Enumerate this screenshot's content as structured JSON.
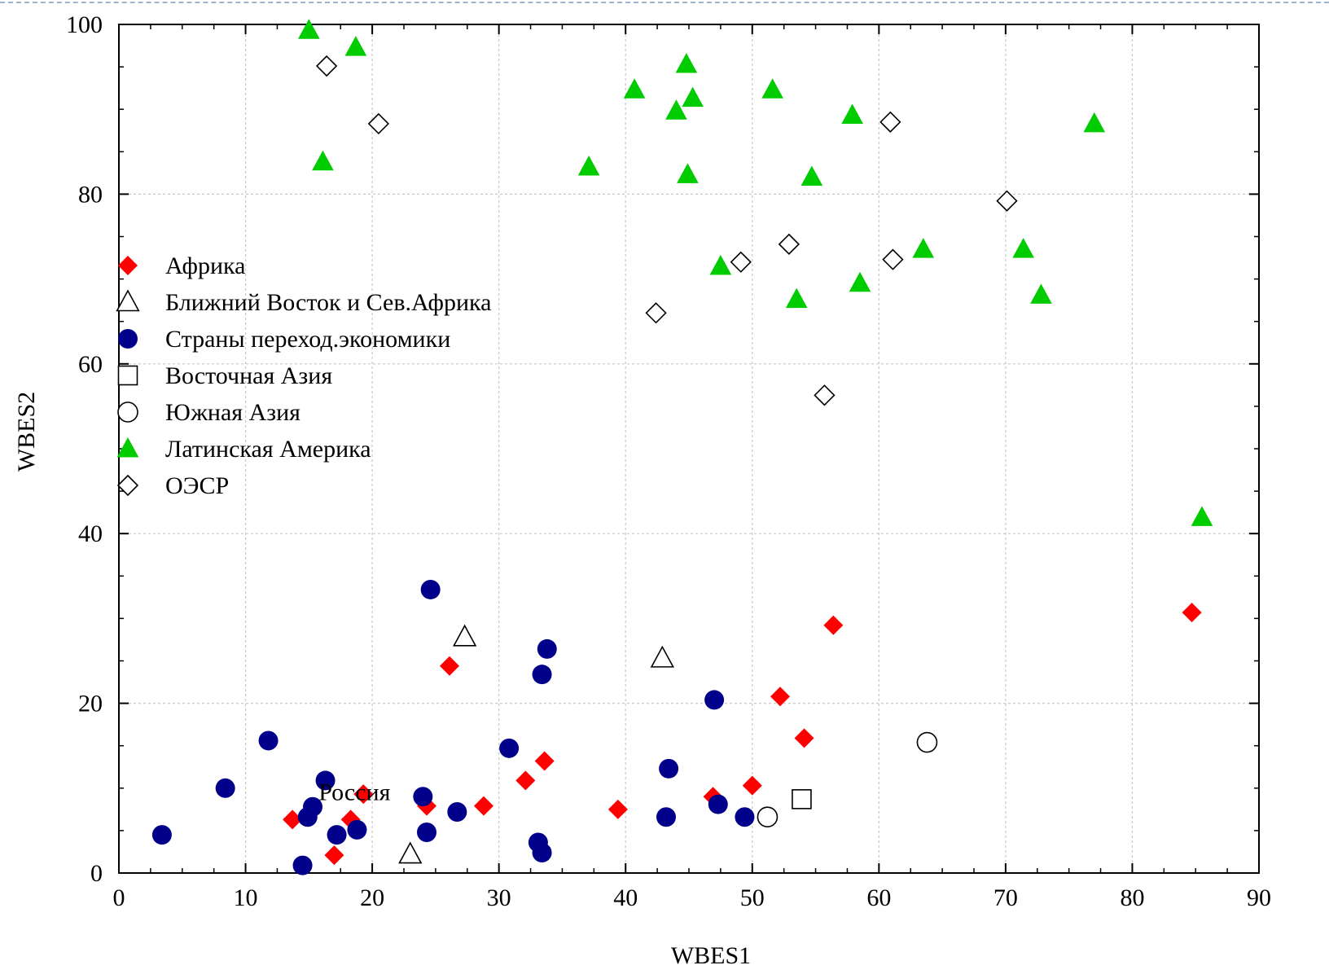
{
  "chart_data": {
    "type": "scatter",
    "title": "",
    "xlabel": "WBES1",
    "ylabel": "WBES2",
    "xlim": [
      0,
      90
    ],
    "ylim": [
      0,
      100
    ],
    "x_ticks": [
      0,
      10,
      20,
      30,
      40,
      50,
      60,
      70,
      80,
      90
    ],
    "y_ticks": [
      0,
      20,
      40,
      60,
      80,
      100
    ],
    "grid": true,
    "legend_position": "center-left",
    "annotations": [
      {
        "text": "Россия",
        "x": 18.6,
        "y": 8.6
      }
    ],
    "series": [
      {
        "name": "Африка",
        "marker": "diamond-filled",
        "color": "#ff0000",
        "points": [
          [
            13.7,
            6.3
          ],
          [
            17.0,
            2.1
          ],
          [
            18.3,
            6.3
          ],
          [
            19.3,
            9.3
          ],
          [
            24.3,
            7.9
          ],
          [
            26.1,
            24.4
          ],
          [
            28.8,
            7.9
          ],
          [
            32.1,
            10.9
          ],
          [
            33.6,
            13.2
          ],
          [
            39.4,
            7.5
          ],
          [
            46.9,
            9.0
          ],
          [
            50.0,
            10.3
          ],
          [
            52.2,
            20.8
          ],
          [
            54.1,
            15.9
          ],
          [
            56.4,
            29.2
          ],
          [
            84.7,
            30.7
          ]
        ]
      },
      {
        "name": "Ближний Восток и Сев.Африка",
        "marker": "triangle-open",
        "color": "#000000",
        "points": [
          [
            23.0,
            2.2
          ],
          [
            27.3,
            27.8
          ],
          [
            42.9,
            25.3
          ]
        ]
      },
      {
        "name": "Страны переход.экономики",
        "marker": "circle-filled",
        "color": "#00008b",
        "points": [
          [
            3.4,
            4.5
          ],
          [
            8.4,
            10.0
          ],
          [
            11.8,
            15.6
          ],
          [
            14.5,
            0.9
          ],
          [
            14.9,
            6.6
          ],
          [
            15.3,
            7.8
          ],
          [
            16.3,
            10.9
          ],
          [
            17.2,
            4.5
          ],
          [
            18.8,
            5.1
          ],
          [
            24.0,
            9.0
          ],
          [
            24.3,
            4.8
          ],
          [
            24.6,
            33.4
          ],
          [
            26.7,
            7.2
          ],
          [
            30.8,
            14.7
          ],
          [
            33.1,
            3.6
          ],
          [
            33.4,
            2.4
          ],
          [
            33.4,
            23.4
          ],
          [
            33.8,
            26.4
          ],
          [
            43.2,
            6.6
          ],
          [
            43.4,
            12.3
          ],
          [
            47.0,
            20.4
          ],
          [
            47.3,
            8.1
          ],
          [
            49.4,
            6.6
          ]
        ]
      },
      {
        "name": "Восточная Азия",
        "marker": "square-open",
        "color": "#000000",
        "points": [
          [
            53.9,
            8.7
          ]
        ]
      },
      {
        "name": "Южная Азия",
        "marker": "circle-open",
        "color": "#000000",
        "points": [
          [
            51.2,
            6.6
          ],
          [
            63.8,
            15.4
          ]
        ]
      },
      {
        "name": "Латинская Америка",
        "marker": "triangle-filled",
        "color": "#00cc00",
        "points": [
          [
            15.0,
            99.3
          ],
          [
            16.1,
            83.8
          ],
          [
            18.7,
            97.3
          ],
          [
            37.1,
            83.2
          ],
          [
            40.7,
            92.3
          ],
          [
            44.0,
            89.8
          ],
          [
            44.8,
            95.3
          ],
          [
            44.9,
            82.3
          ],
          [
            45.3,
            91.3
          ],
          [
            47.5,
            71.5
          ],
          [
            51.6,
            92.3
          ],
          [
            53.5,
            67.6
          ],
          [
            54.7,
            82.0
          ],
          [
            57.9,
            89.3
          ],
          [
            58.5,
            69.5
          ],
          [
            63.5,
            73.5
          ],
          [
            71.4,
            73.5
          ],
          [
            72.8,
            68.1
          ],
          [
            77.0,
            88.3
          ],
          [
            85.5,
            41.9
          ]
        ]
      },
      {
        "name": "ОЭСР",
        "marker": "diamond-open",
        "color": "#000000",
        "points": [
          [
            16.4,
            95.1
          ],
          [
            20.5,
            88.3
          ],
          [
            42.4,
            66.0
          ],
          [
            49.1,
            72.0
          ],
          [
            52.9,
            74.1
          ],
          [
            55.7,
            56.3
          ],
          [
            60.9,
            88.5
          ],
          [
            61.1,
            72.3
          ],
          [
            70.1,
            79.2
          ]
        ]
      }
    ]
  }
}
